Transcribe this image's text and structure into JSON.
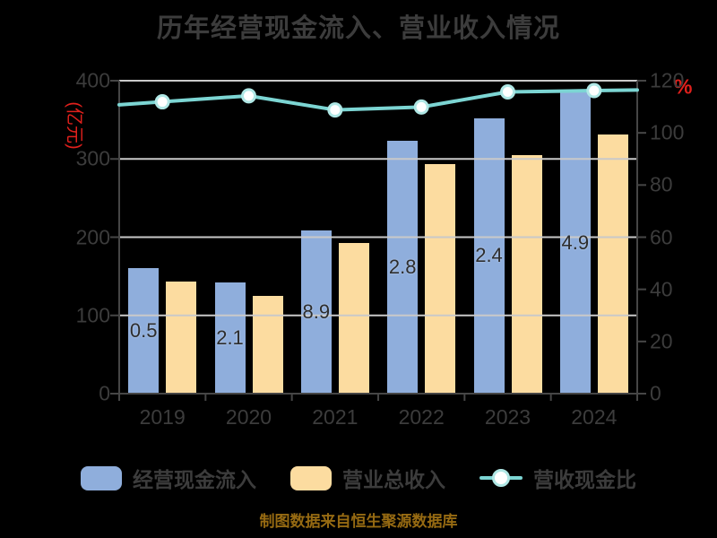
{
  "title": "历年经营现金流入、营业收入情况",
  "footer_note": "制图数据来自恒生聚源数据库",
  "colors": {
    "background": "#000000",
    "text": "#3C3C3C",
    "bar_label": "#2D2D2D",
    "axis_unit_red": "#E0201C",
    "footer_gold": "#966A12",
    "cash_inflow_blue": "#8FAEDC",
    "revenue_orange": "#FCDCA0",
    "ratio_teal": "#7CD5D3",
    "marker_ring": "#AFE7E5",
    "gridline": "#C9C9C9",
    "spine": "#464646"
  },
  "chart_data": {
    "type": "bar",
    "subtype": "grouped-bars-with-secondary-axis-line",
    "title": "历年经营现金流入、营业收入情况",
    "categories": [
      "2019",
      "2020",
      "2021",
      "2022",
      "2023",
      "2024"
    ],
    "series": [
      {
        "name": "经营现金流入",
        "type": "bar",
        "axis": "left",
        "color": "#8FAEDC",
        "values": [
          160.5,
          142.1,
          208.9,
          322.8,
          352.4,
          384.9
        ],
        "visible_label_fragments": [
          "0.5",
          "2.1",
          "8.9",
          "2.8",
          "2.4",
          "4.9"
        ]
      },
      {
        "name": "营业总收入",
        "type": "bar",
        "axis": "left",
        "color": "#FCDCA0",
        "values": [
          143.5,
          124.4,
          192.0,
          293.7,
          304.6,
          331.2
        ]
      },
      {
        "name": "营收现金比",
        "type": "line",
        "axis": "right",
        "color": "#7CD5D3",
        "values": [
          111.9,
          114.2,
          108.8,
          109.9,
          115.7,
          116.2
        ]
      }
    ],
    "y_left": {
      "label": "(亿元)",
      "min": 0,
      "max": 400,
      "ticks": [
        0,
        100,
        200,
        300,
        400
      ]
    },
    "y_right": {
      "label": "%",
      "min": 0,
      "max": 120,
      "ticks": [
        0,
        20,
        40,
        60,
        80,
        100,
        120
      ]
    },
    "grid": "horizontal gridlines from left axis, drawn over bars",
    "legend_position": "bottom"
  }
}
